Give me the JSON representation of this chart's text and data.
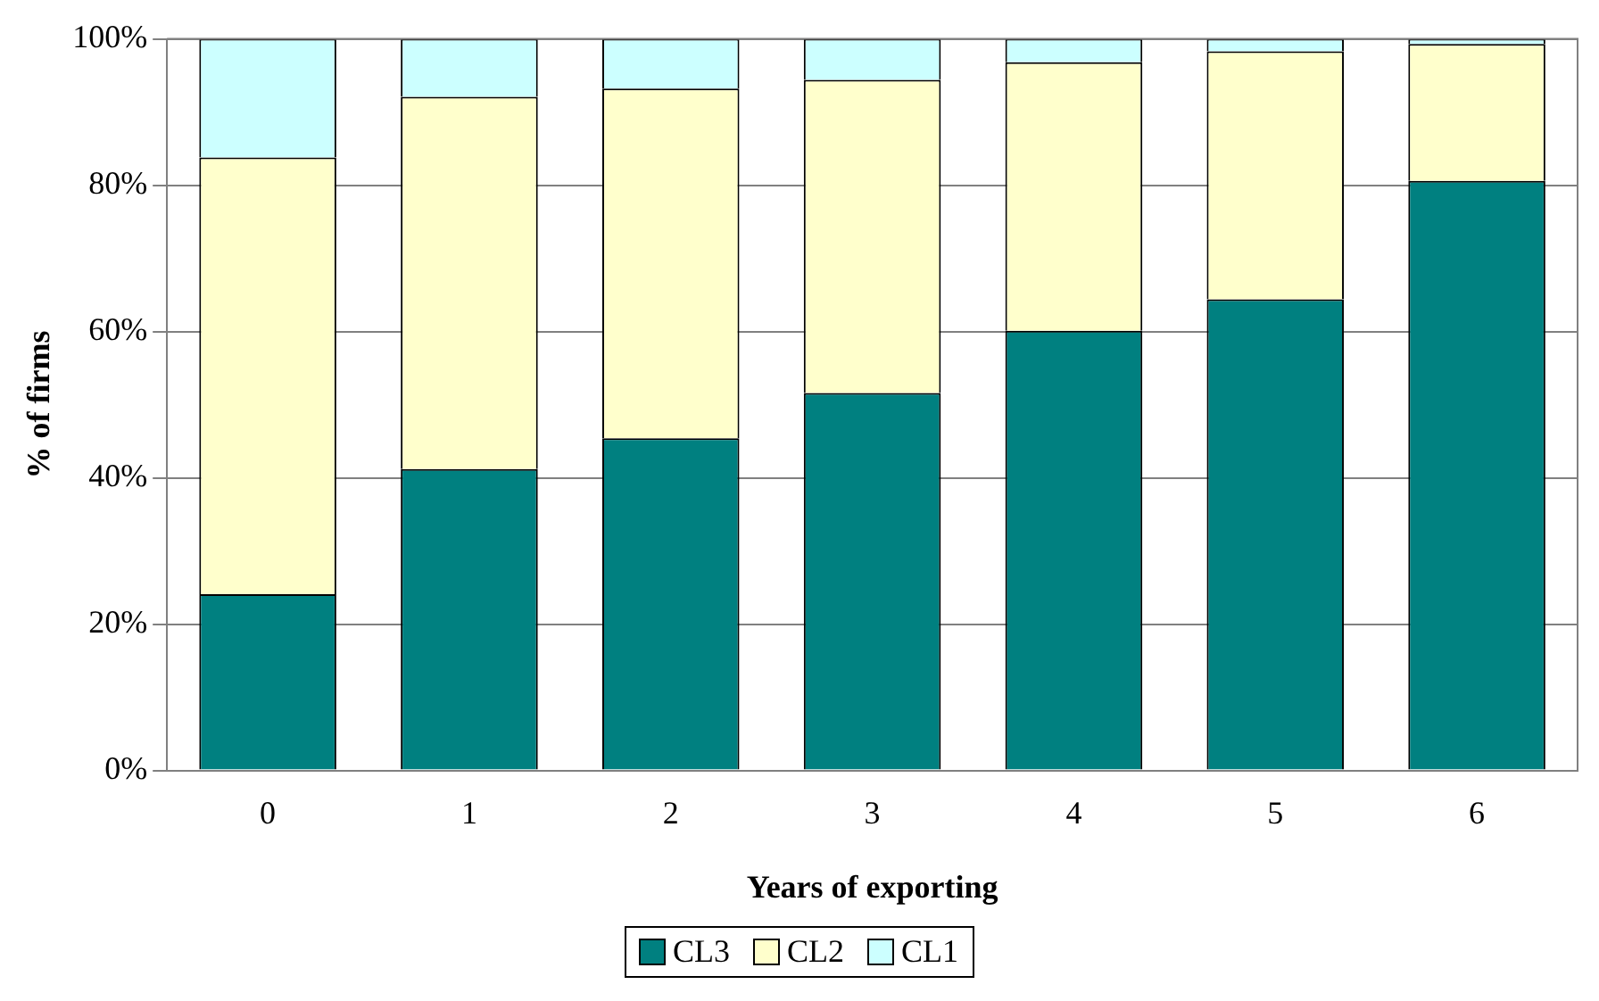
{
  "chart_data": {
    "type": "bar",
    "stacked": true,
    "xlabel": "Years of exporting",
    "ylabel": "% of firms",
    "categories": [
      "0",
      "1",
      "2",
      "3",
      "4",
      "5",
      "6"
    ],
    "series": [
      {
        "name": "CL3",
        "color": "#008080",
        "values": [
          24.1,
          41.2,
          45.4,
          51.6,
          60.1,
          64.4,
          80.6
        ]
      },
      {
        "name": "CL2",
        "color": "#ffffcc",
        "values": [
          59.7,
          50.9,
          47.8,
          42.8,
          36.7,
          33.9,
          18.7
        ]
      },
      {
        "name": "CL1",
        "color": "#ccffff",
        "values": [
          16.2,
          7.9,
          6.8,
          5.6,
          3.2,
          1.7,
          0.7
        ]
      }
    ],
    "ylim": [
      0,
      100
    ],
    "yticks": [
      {
        "value": 0,
        "label": "0%"
      },
      {
        "value": 20,
        "label": "20%"
      },
      {
        "value": 40,
        "label": "40%"
      },
      {
        "value": 60,
        "label": "60%"
      },
      {
        "value": 80,
        "label": "80%"
      },
      {
        "value": 100,
        "label": "100%"
      }
    ],
    "grid": "y",
    "legend": "bottom"
  }
}
